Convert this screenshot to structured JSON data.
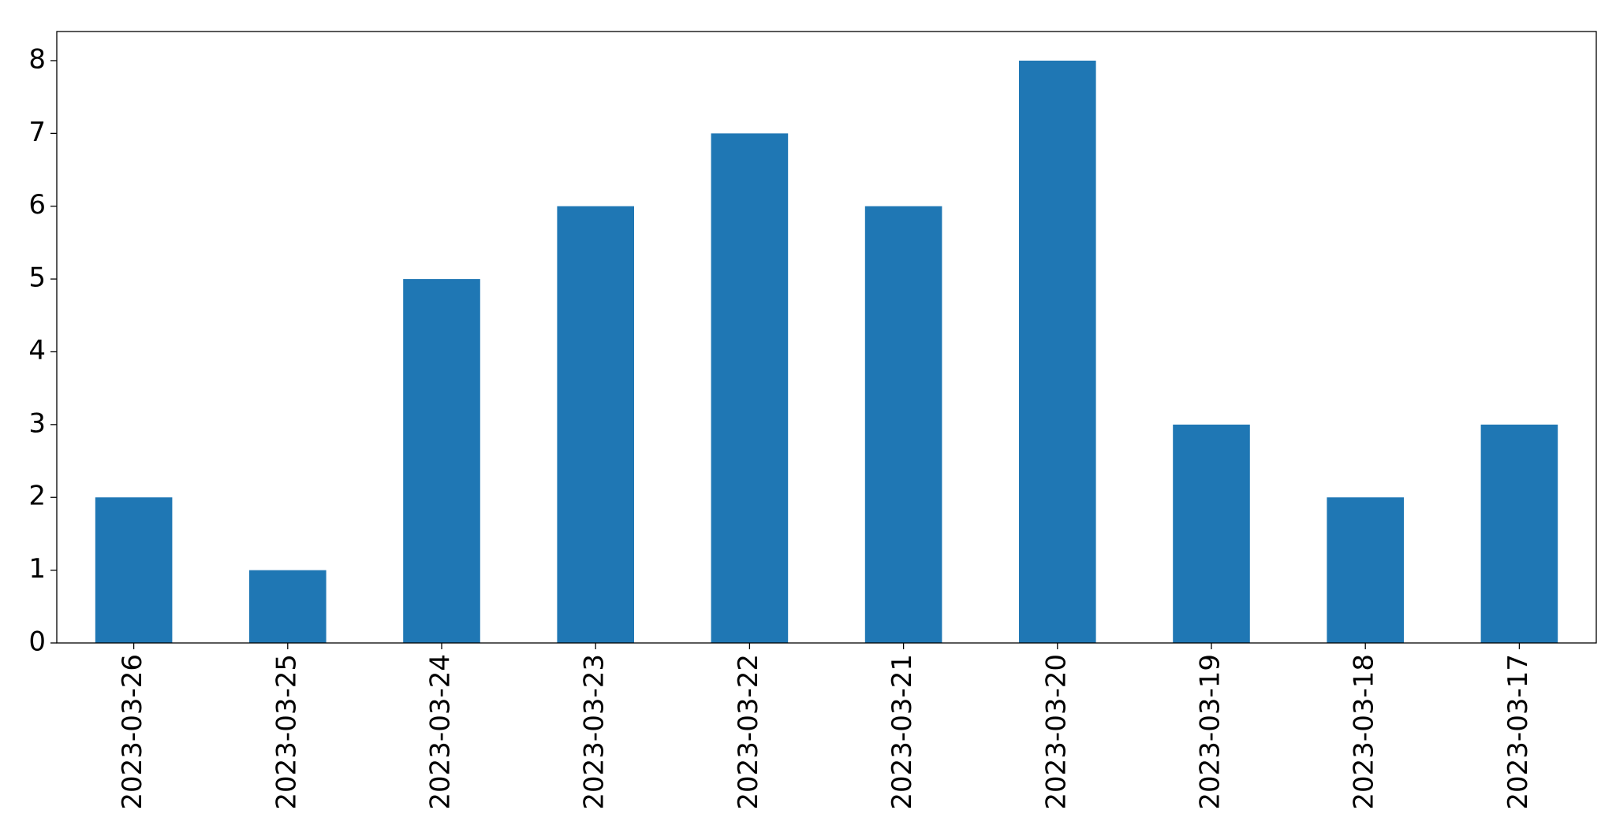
{
  "chart_data": {
    "type": "bar",
    "categories": [
      "2023-03-26",
      "2023-03-25",
      "2023-03-24",
      "2023-03-23",
      "2023-03-22",
      "2023-03-21",
      "2023-03-20",
      "2023-03-19",
      "2023-03-18",
      "2023-03-17"
    ],
    "values": [
      2,
      1,
      5,
      6,
      7,
      6,
      8,
      3,
      2,
      3
    ],
    "color": "#1f77b4",
    "ylim": [
      0,
      8.4
    ],
    "yticks": [
      0,
      1,
      2,
      3,
      4,
      5,
      6,
      7,
      8
    ],
    "grid": false
  }
}
